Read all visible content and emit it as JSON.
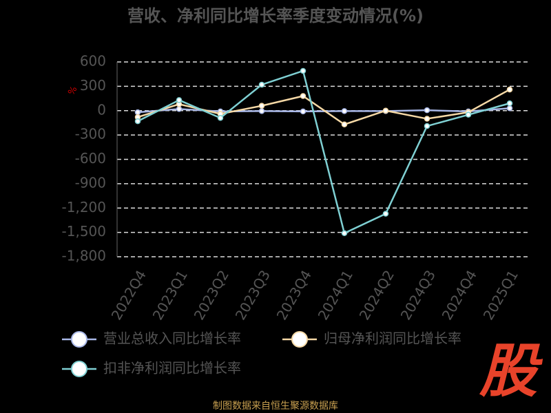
{
  "chart_data": {
    "type": "line",
    "title": "营收、净利同比增长率季度变动情况(%)",
    "y_label": "%",
    "categories": [
      "2022Q4",
      "2023Q1",
      "2023Q2",
      "2023Q3",
      "2023Q4",
      "2024Q1",
      "2024Q2",
      "2024Q3",
      "2024Q4",
      "2025Q1"
    ],
    "series": [
      {
        "name": "营业总收入同比增长率",
        "color": "#a9b8e8",
        "values": [
          -20,
          20,
          -10,
          -5,
          -10,
          -5,
          -5,
          5,
          -10,
          30
        ]
      },
      {
        "name": "归母净利润同比增长率",
        "color": "#f6d9a6",
        "values": [
          -80,
          80,
          -40,
          60,
          180,
          -170,
          0,
          -100,
          -20,
          260
        ]
      },
      {
        "name": "扣非净利润同比增长率",
        "color": "#7fd0d3",
        "values": [
          -130,
          130,
          -90,
          320,
          490,
          -1510,
          -1270,
          -190,
          -50,
          90
        ]
      }
    ],
    "ylim": [
      -1800,
      600
    ],
    "yticks": [
      600,
      300,
      0,
      -300,
      -600,
      -900,
      {
        "value": -1200,
        "label": "-1,200"
      },
      {
        "value": -1500,
        "label": "-1,500"
      },
      {
        "value": -1800,
        "label": "-1,800"
      }
    ],
    "grid": true,
    "source": "制图数据来自恒生聚源数据库",
    "logo": "股"
  }
}
